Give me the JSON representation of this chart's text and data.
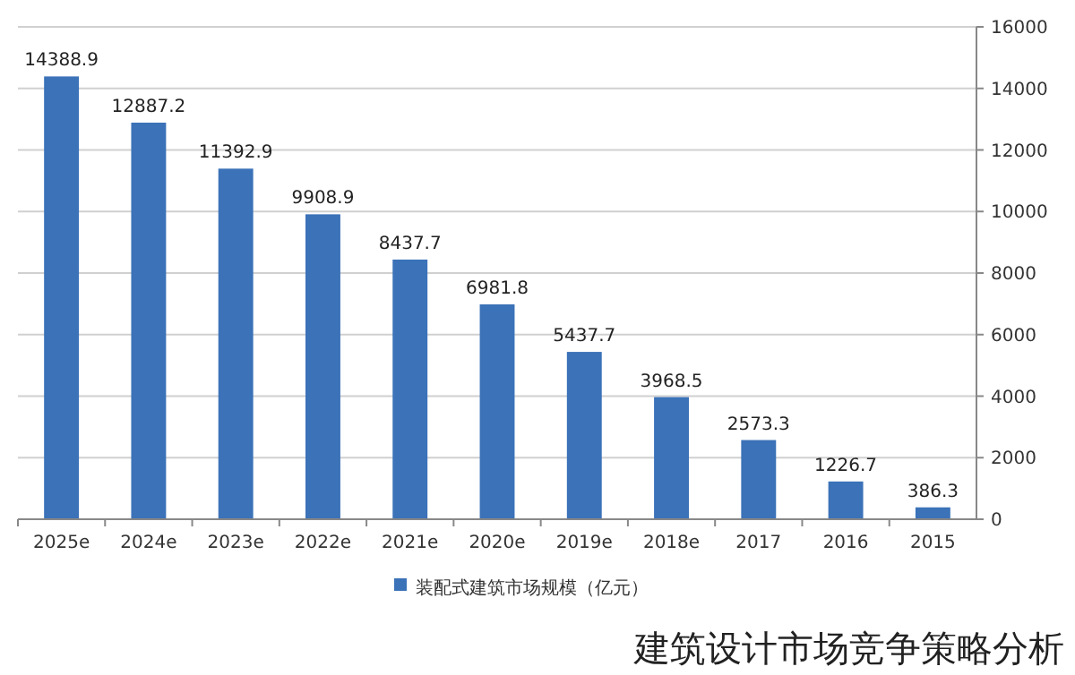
{
  "chart_data": {
    "type": "bar",
    "categories": [
      "2025e",
      "2024e",
      "2023e",
      "2022e",
      "2021e",
      "2020e",
      "2019e",
      "2018e",
      "2017",
      "2016",
      "2015"
    ],
    "series": [
      {
        "name": "装配式建筑市场规模（亿元）",
        "color": "#3b72b8",
        "values": [
          14388.9,
          12887.2,
          11392.9,
          9908.9,
          8437.7,
          6981.8,
          5437.7,
          3968.5,
          2573.3,
          1226.7,
          386.3
        ]
      }
    ],
    "ylim": [
      0,
      16000
    ],
    "yticks": [
      0,
      2000,
      4000,
      6000,
      8000,
      10000,
      12000,
      14000,
      16000
    ],
    "grid": "y",
    "data_labels": true,
    "legend": "bottom",
    "annotations": [
      "建筑设计市场竞争策略分析"
    ]
  }
}
